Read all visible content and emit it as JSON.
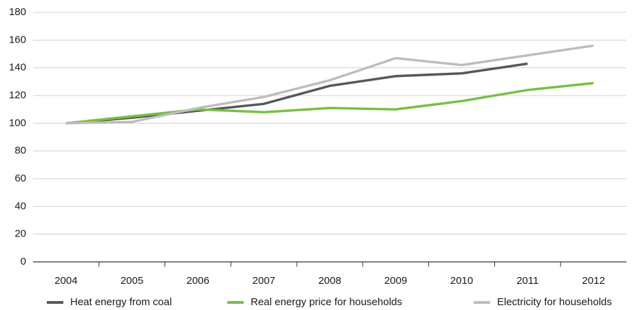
{
  "chart_data": {
    "type": "line",
    "categories": [
      "2004",
      "2005",
      "2006",
      "2007",
      "2008",
      "2009",
      "2010",
      "2011",
      "2012"
    ],
    "series": [
      {
        "name": "Heat energy from coal",
        "color": "#555759",
        "values": [
          100,
          104,
          109,
          114,
          127,
          134,
          136,
          143,
          null
        ]
      },
      {
        "name": "Real energy price for households",
        "color": "#77c043",
        "values": [
          100,
          105,
          110,
          108,
          111,
          110,
          116,
          124,
          129
        ]
      },
      {
        "name": "Electricity for households",
        "color": "#bdbdbd",
        "values": [
          100,
          101,
          111,
          119,
          131,
          147,
          142,
          149,
          156
        ]
      }
    ],
    "ylim": [
      0,
      180
    ],
    "yticks": [
      0,
      20,
      40,
      60,
      80,
      100,
      120,
      140,
      160,
      180
    ],
    "grid": true,
    "legend": "bottom"
  }
}
